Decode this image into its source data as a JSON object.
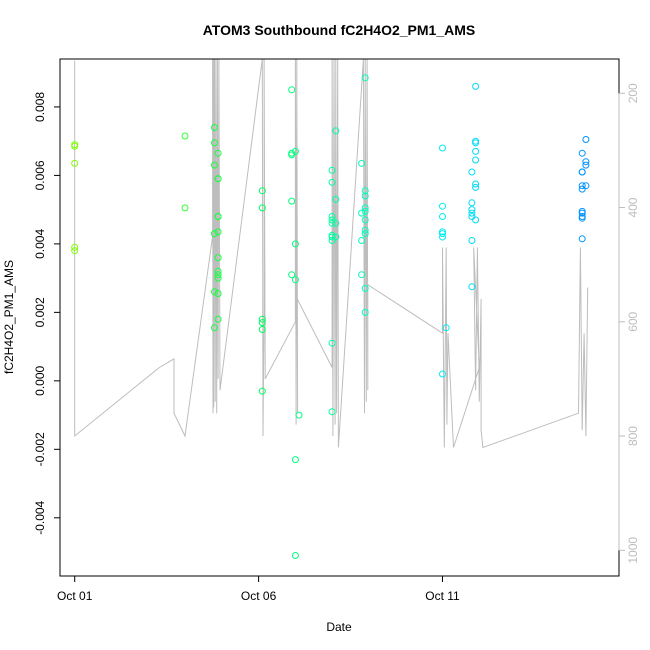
{
  "chart_data": {
    "type": "scatter",
    "title": "ATOM3 Southbound fC2H4O2_PM1_AMS",
    "xlabel": "Date",
    "ylabel": "fC2H4O2_PM1_AMS",
    "x_ticks": [
      "Oct 01",
      "Oct 06",
      "Oct 11"
    ],
    "x_tick_values": [
      1,
      6,
      11
    ],
    "xlim": [
      0.6,
      15.8
    ],
    "y_ticks": [
      "-0.004",
      "-0.002",
      "0.000",
      "0.002",
      "0.004",
      "0.006",
      "0.008"
    ],
    "y_tick_values": [
      -0.004,
      -0.002,
      0.0,
      0.002,
      0.004,
      0.006,
      0.008
    ],
    "ylim": [
      -0.0057,
      0.0094
    ],
    "y2_ticks": [
      "200",
      "400",
      "600",
      "800",
      "1000"
    ],
    "y2_tick_values": [
      200,
      400,
      600,
      800,
      1000
    ],
    "y2lim": [
      140,
      1045
    ],
    "y2_reversed": true,
    "colors": {
      "line": "#bdbdbd",
      "axis": "#000000",
      "y2_axis": "#bdbdbd",
      "point_gradient": [
        "#7fff00",
        "#00ff50",
        "#00fff0",
        "#0090ff"
      ]
    },
    "points": [
      [
        1.0,
        0.0069
      ],
      [
        1.0,
        0.00685
      ],
      [
        1.0,
        0.00635
      ],
      [
        1.0,
        0.0039
      ],
      [
        1.0,
        0.0038
      ],
      [
        4.0,
        0.00715
      ],
      [
        4.0,
        0.00505
      ],
      [
        4.8,
        0.0074
      ],
      [
        4.8,
        0.00695
      ],
      [
        4.8,
        0.0063
      ],
      [
        4.8,
        0.0043
      ],
      [
        4.8,
        0.00155
      ],
      [
        4.8,
        0.0026
      ],
      [
        4.9,
        0.00665
      ],
      [
        4.9,
        0.0059
      ],
      [
        4.9,
        0.0059
      ],
      [
        4.9,
        0.0048
      ],
      [
        4.9,
        0.0048
      ],
      [
        4.9,
        0.00435
      ],
      [
        4.9,
        0.0036
      ],
      [
        4.9,
        0.0032
      ],
      [
        4.9,
        0.0031
      ],
      [
        4.9,
        0.003
      ],
      [
        4.9,
        0.00255
      ],
      [
        4.9,
        0.0018
      ],
      [
        6.1,
        0.00555
      ],
      [
        6.1,
        0.00505
      ],
      [
        6.1,
        0.0018
      ],
      [
        6.1,
        0.0017
      ],
      [
        6.1,
        0.0015
      ],
      [
        6.1,
        -0.0003
      ],
      [
        6.9,
        0.0085
      ],
      [
        6.9,
        0.00665
      ],
      [
        6.9,
        0.0066
      ],
      [
        6.9,
        0.00525
      ],
      [
        6.9,
        0.0031
      ],
      [
        7.0,
        0.0067
      ],
      [
        7.0,
        0.004
      ],
      [
        7.0,
        0.00295
      ],
      [
        7.0,
        -0.0023
      ],
      [
        7.0,
        -0.0051
      ],
      [
        7.1,
        -0.001
      ],
      [
        8.0,
        0.00615
      ],
      [
        8.0,
        0.0058
      ],
      [
        8.0,
        0.0048
      ],
      [
        8.0,
        0.0047
      ],
      [
        8.0,
        0.0046
      ],
      [
        8.0,
        0.00425
      ],
      [
        8.0,
        0.0042
      ],
      [
        8.0,
        0.0041
      ],
      [
        8.0,
        0.0011
      ],
      [
        8.0,
        -0.0009
      ],
      [
        8.1,
        0.0073
      ],
      [
        8.1,
        0.0053
      ],
      [
        8.1,
        0.0046
      ],
      [
        8.1,
        0.0042
      ],
      [
        8.8,
        0.00635
      ],
      [
        8.8,
        0.0049
      ],
      [
        8.8,
        0.0041
      ],
      [
        8.8,
        0.0031
      ],
      [
        8.9,
        0.00885
      ],
      [
        8.9,
        0.00555
      ],
      [
        8.9,
        0.0054
      ],
      [
        8.9,
        0.00505
      ],
      [
        8.9,
        0.00495
      ],
      [
        8.9,
        0.0047
      ],
      [
        8.9,
        0.0044
      ],
      [
        8.9,
        0.0043
      ],
      [
        8.9,
        0.0027
      ],
      [
        8.9,
        0.002
      ],
      [
        11.0,
        0.0068
      ],
      [
        11.0,
        0.0051
      ],
      [
        11.0,
        0.0048
      ],
      [
        11.0,
        0.00435
      ],
      [
        11.0,
        0.0043
      ],
      [
        11.0,
        0.0042
      ],
      [
        11.0,
        0.0002
      ],
      [
        11.1,
        0.00155
      ],
      [
        11.8,
        0.0061
      ],
      [
        11.8,
        0.0052
      ],
      [
        11.8,
        0.005
      ],
      [
        11.8,
        0.0049
      ],
      [
        11.8,
        0.0048
      ],
      [
        11.8,
        0.0041
      ],
      [
        11.8,
        0.00275
      ],
      [
        11.9,
        0.0086
      ],
      [
        11.9,
        0.007
      ],
      [
        11.9,
        0.00695
      ],
      [
        11.9,
        0.0067
      ],
      [
        11.9,
        0.00645
      ],
      [
        11.9,
        0.00575
      ],
      [
        11.9,
        0.00565
      ],
      [
        11.9,
        0.0047
      ],
      [
        14.8,
        0.00665
      ],
      [
        14.8,
        0.0061
      ],
      [
        14.8,
        0.0061
      ],
      [
        14.8,
        0.0057
      ],
      [
        14.8,
        0.0056
      ],
      [
        14.8,
        0.00495
      ],
      [
        14.8,
        0.0049
      ],
      [
        14.8,
        0.0048
      ],
      [
        14.8,
        0.00475
      ],
      [
        14.8,
        0.00415
      ],
      [
        14.9,
        0.00705
      ],
      [
        14.9,
        0.0064
      ],
      [
        14.9,
        0.0063
      ],
      [
        14.9,
        0.0057
      ]
    ],
    "altitude_track": [
      [
        1.0,
        143
      ],
      [
        1.0,
        800
      ],
      [
        3.3,
        680
      ],
      [
        3.7,
        665
      ],
      [
        3.7,
        760
      ],
      [
        4.0,
        800
      ],
      [
        4.75,
        450
      ],
      [
        4.75,
        140
      ],
      [
        4.76,
        760
      ],
      [
        4.77,
        140
      ],
      [
        4.78,
        750
      ],
      [
        4.8,
        140
      ],
      [
        4.82,
        740
      ],
      [
        4.84,
        140
      ],
      [
        4.86,
        760
      ],
      [
        4.88,
        140
      ],
      [
        4.9,
        700
      ],
      [
        4.92,
        140
      ],
      [
        4.95,
        720
      ],
      [
        6.1,
        140
      ],
      [
        6.12,
        800
      ],
      [
        6.15,
        580
      ],
      [
        6.15,
        140
      ],
      [
        6.18,
        700
      ],
      [
        7.0,
        600
      ],
      [
        7.0,
        140
      ],
      [
        7.02,
        780
      ],
      [
        7.04,
        140
      ],
      [
        7.06,
        760
      ],
      [
        7.05,
        560
      ],
      [
        8.0,
        680
      ],
      [
        8.0,
        140
      ],
      [
        8.02,
        800
      ],
      [
        8.05,
        140
      ],
      [
        8.08,
        780
      ],
      [
        8.1,
        140
      ],
      [
        8.12,
        760
      ],
      [
        8.15,
        140
      ],
      [
        8.17,
        820
      ],
      [
        8.85,
        140
      ],
      [
        8.88,
        760
      ],
      [
        8.9,
        140
      ],
      [
        8.93,
        740
      ],
      [
        8.95,
        140
      ],
      [
        8.97,
        720
      ],
      [
        8.97,
        535
      ],
      [
        11.0,
        620
      ],
      [
        11.0,
        470
      ],
      [
        11.05,
        820
      ],
      [
        11.1,
        470
      ],
      [
        11.12,
        780
      ],
      [
        11.15,
        620
      ],
      [
        11.3,
        820
      ],
      [
        12.0,
        680
      ],
      [
        11.85,
        470
      ],
      [
        11.9,
        720
      ],
      [
        11.95,
        470
      ],
      [
        12.0,
        740
      ],
      [
        12.05,
        560
      ],
      [
        12.05,
        790
      ],
      [
        12.1,
        820
      ],
      [
        14.7,
        760
      ],
      [
        14.75,
        470
      ],
      [
        14.8,
        790
      ],
      [
        14.85,
        620
      ],
      [
        14.9,
        800
      ],
      [
        14.95,
        540
      ]
    ]
  }
}
